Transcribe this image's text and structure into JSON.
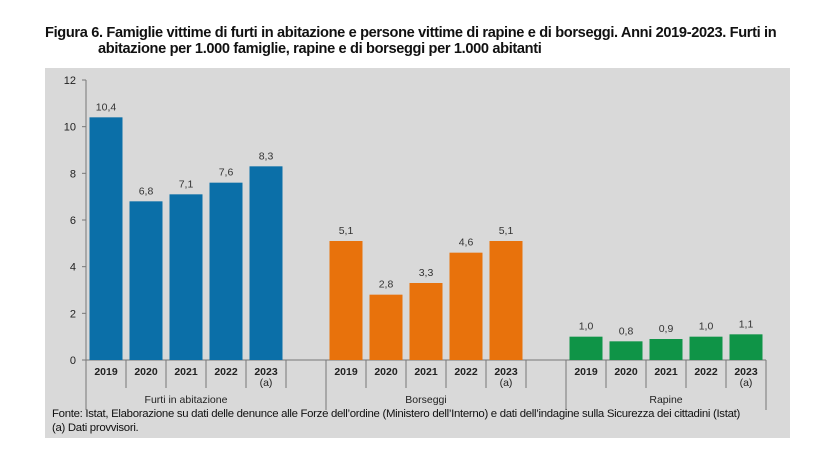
{
  "title_line1": "Figura 6. Famiglie vittime di furti in abitazione e persone vittime di rapine e di borseggi. Anni 2019-2023. Furti in",
  "title_line2": "abitazione per 1.000 famiglie, rapine e di borseggi per 1.000 abitanti",
  "chart_data": {
    "type": "bar",
    "ylim": [
      0,
      12
    ],
    "yticks": [
      "0",
      "2",
      "4",
      "6",
      "8",
      "10",
      "12"
    ],
    "grid": false,
    "groups": [
      {
        "label": "Furti in abitazione",
        "color": "#0b6fa8",
        "categories": [
          "2019",
          "2020",
          "2021",
          "2022",
          "2023"
        ],
        "category_notes": [
          "",
          "",
          "",
          "",
          "(a)"
        ],
        "values": [
          10.4,
          6.8,
          7.1,
          7.6,
          8.3
        ],
        "labels": [
          "10,4",
          "6,8",
          "7,1",
          "7,6",
          "8,3"
        ]
      },
      {
        "label": "Borseggi",
        "color": "#e8720c",
        "categories": [
          "2019",
          "2020",
          "2021",
          "2022",
          "2023"
        ],
        "category_notes": [
          "",
          "",
          "",
          "",
          "(a)"
        ],
        "values": [
          5.1,
          2.8,
          3.3,
          4.6,
          5.1
        ],
        "labels": [
          "5,1",
          "2,8",
          "3,3",
          "4,6",
          "5,1"
        ]
      },
      {
        "label": "Rapine",
        "color": "#0f9447",
        "categories": [
          "2019",
          "2020",
          "2021",
          "2022",
          "2023"
        ],
        "category_notes": [
          "",
          "",
          "",
          "",
          "(a)"
        ],
        "values": [
          1.0,
          0.8,
          0.9,
          1.0,
          1.1
        ],
        "labels": [
          "1,0",
          "0,8",
          "0,9",
          "1,0",
          "1,1"
        ]
      }
    ]
  },
  "footer": {
    "source": "Fonte: Istat, Elaborazione su dati delle denunce alle Forze dell’ordine (Ministero dell’Interno) e dati dell’indagine sulla Sicurezza dei cittadini (Istat)",
    "note": "(a) Dati provvisori."
  }
}
